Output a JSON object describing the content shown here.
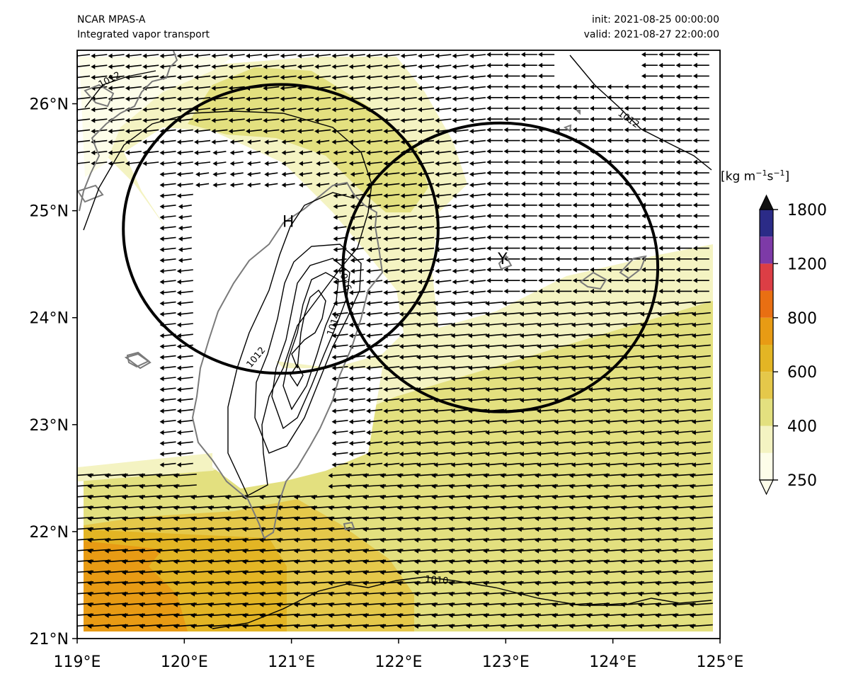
{
  "header": {
    "model": "NCAR MPAS-A",
    "field": "Integrated vapor transport",
    "init": "init: 2021-08-25 00:00:00",
    "valid": "valid: 2021-08-27 22:00:00"
  },
  "map": {
    "lon_range": [
      119,
      125
    ],
    "lat_range": [
      21,
      26.5
    ],
    "x_ticks": [
      "119°E",
      "120°E",
      "121°E",
      "122°E",
      "123°E",
      "124°E",
      "125°E"
    ],
    "y_ticks": [
      "21°N",
      "22°N",
      "23°N",
      "24°N",
      "25°N",
      "26°N"
    ],
    "x_tick_values": [
      119,
      120,
      121,
      122,
      123,
      124,
      125
    ],
    "y_tick_values": [
      21,
      22,
      23,
      24,
      25,
      26
    ],
    "markers": [
      {
        "label": "H",
        "lon": 120.97,
        "lat": 24.85
      },
      {
        "label": "Y",
        "lon": 122.97,
        "lat": 24.5
      }
    ],
    "circles": [
      {
        "center_lon": 120.9,
        "center_lat": 24.83,
        "radius_deg_lat": 1.35
      },
      {
        "center_lon": 122.95,
        "center_lat": 24.47,
        "radius_deg_lat": 1.35
      }
    ],
    "pressure_contour_labels": [
      "1012",
      "1012",
      "1016",
      "1014",
      "1012",
      "1010"
    ],
    "wind_vector_direction": "westward"
  },
  "colorbar": {
    "units_main": "[kg m",
    "units_sup1": "−1",
    "units_mid": "s",
    "units_sup2": "−1",
    "units_end": "]",
    "ticks": [
      "250",
      "400",
      "600",
      "800",
      "1200",
      "1800"
    ],
    "colors": {
      "c250": "#fdfde9",
      "c300": "#f4f3c2",
      "c400": "#e3e07f",
      "c500": "#e5c84a",
      "c600": "#e3b524",
      "c700": "#e89b14",
      "c800": "#e96f12",
      "c1000": "#dc3e45",
      "c1200": "#7d3aa7",
      "c1500": "#2b2b87",
      "over": "#111111"
    }
  }
}
